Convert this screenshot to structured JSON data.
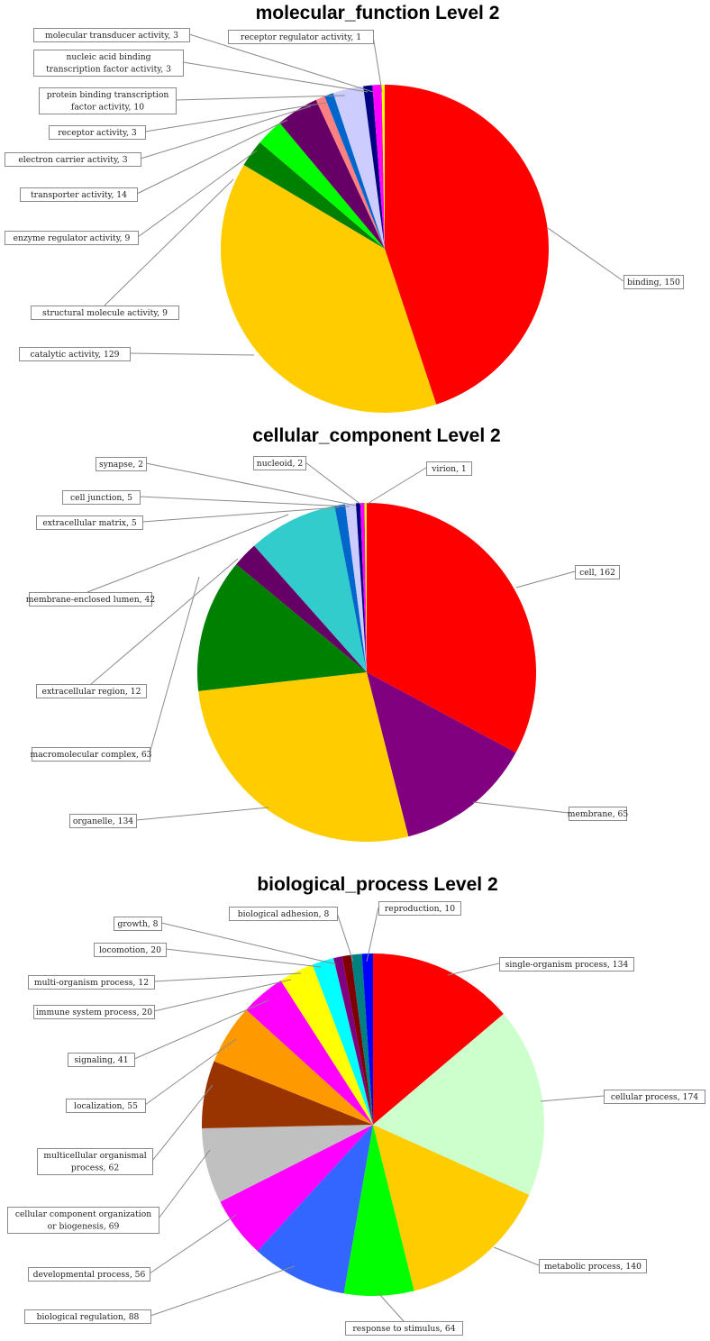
{
  "chart_data": [
    {
      "type": "pie",
      "title": "molecular_function Level 2",
      "start_angle": "12 o'clock",
      "direction": "clockwise",
      "slices": [
        {
          "label": "binding",
          "value": 150,
          "color": "#FF0000",
          "label_text": "binding, 150"
        },
        {
          "label": "catalytic activity",
          "value": 129,
          "color": "#FFCC00",
          "label_text": "catalytic activity, 129"
        },
        {
          "label": "structural molecule activity",
          "value": 9,
          "color": "#008000",
          "label_text": "structural molecule activity, 9"
        },
        {
          "label": "enzyme regulator activity",
          "value": 9,
          "color": "#00FF00",
          "label_text": "enzyme regulator activity, 9"
        },
        {
          "label": "transporter activity",
          "value": 14,
          "color": "#660066",
          "label_text": "transporter activity, 14"
        },
        {
          "label": "electron carrier activity",
          "value": 3,
          "color": "#FF8080",
          "label_text": "electron carrier activity, 3"
        },
        {
          "label": "receptor activity",
          "value": 3,
          "color": "#0066CC",
          "label_text": "receptor activity, 3"
        },
        {
          "label": "protein binding transcription factor activity",
          "value": 10,
          "color": "#CCCCFF",
          "label_text": [
            "protein binding transcription",
            "factor activity, 10"
          ]
        },
        {
          "label": "nucleic acid binding transcription factor activity",
          "value": 3,
          "color": "#000080",
          "label_text": [
            "nucleic acid binding",
            "transcription factor activity, 3"
          ]
        },
        {
          "label": "molecular transducer activity",
          "value": 3,
          "color": "#FF00FF",
          "label_text": "molecular transducer activity, 3"
        },
        {
          "label": "receptor regulator activity",
          "value": 1,
          "color": "#FFFF00",
          "label_text": "receptor regulator activity, 1"
        }
      ]
    },
    {
      "type": "pie",
      "title": "cellular_component Level 2",
      "start_angle": "12 o'clock",
      "direction": "clockwise",
      "slices": [
        {
          "label": "cell",
          "value": 162,
          "color": "#FF0000",
          "label_text": "cell, 162"
        },
        {
          "label": "membrane",
          "value": 65,
          "color": "#800080",
          "label_text": "membrane, 65"
        },
        {
          "label": "organelle",
          "value": 134,
          "color": "#FFCC00",
          "label_text": "organelle, 134"
        },
        {
          "label": "macromolecular complex",
          "value": 63,
          "color": "#008000",
          "label_text": "macromolecular complex, 63"
        },
        {
          "label": "extracellular region",
          "value": 12,
          "color": "#660066",
          "label_text": "extracellular region, 12"
        },
        {
          "label": "membrane-enclosed lumen",
          "value": 42,
          "color": "#33CCCC",
          "label_text": "membrane-enclosed lumen, 42"
        },
        {
          "label": "extracellular matrix",
          "value": 5,
          "color": "#0066CC",
          "label_text": "extracellular matrix, 5"
        },
        {
          "label": "cell junction",
          "value": 5,
          "color": "#CCCCFF",
          "label_text": "cell junction, 5"
        },
        {
          "label": "synapse",
          "value": 2,
          "color": "#000080",
          "label_text": "synapse, 2"
        },
        {
          "label": "nucleoid",
          "value": 2,
          "color": "#FF00FF",
          "label_text": "nucleoid, 2"
        },
        {
          "label": "virion",
          "value": 1,
          "color": "#FFFF00",
          "label_text": "virion, 1"
        }
      ]
    },
    {
      "type": "pie",
      "title": "biological_process Level 2",
      "start_angle": "12 o'clock",
      "direction": "clockwise",
      "slices": [
        {
          "label": "single-organism process",
          "value": 134,
          "color": "#FF0000",
          "label_text": "single-organism process, 134"
        },
        {
          "label": "cellular process",
          "value": 174,
          "color": "#CCFFCC",
          "label_text": "cellular process, 174"
        },
        {
          "label": "metabolic process",
          "value": 140,
          "color": "#FFCC00",
          "label_text": "metabolic process, 140"
        },
        {
          "label": "response to stimulus",
          "value": 64,
          "color": "#00FF00",
          "label_text": "response to stimulus, 64"
        },
        {
          "label": "biological regulation",
          "value": 88,
          "color": "#3366FF",
          "label_text": "biological regulation, 88"
        },
        {
          "label": "developmental process",
          "value": 56,
          "color": "#FF00FF",
          "label_text": "developmental process, 56"
        },
        {
          "label": "cellular component organization or biogenesis",
          "value": 69,
          "color": "#C0C0C0",
          "label_text": [
            "cellular component organization",
            "or biogenesis, 69"
          ]
        },
        {
          "label": "multicellular organismal process",
          "value": 62,
          "color": "#993300",
          "label_text": [
            "multicellular organismal",
            "process, 62"
          ]
        },
        {
          "label": "localization",
          "value": 55,
          "color": "#FF9900",
          "label_text": "localization, 55"
        },
        {
          "label": "signaling",
          "value": 41,
          "color": "#FF00FF",
          "label_text": "signaling, 41"
        },
        {
          "label": "immune system process",
          "value": 20,
          "color": "#FFFF00",
          "label_text": "immune system process, 20"
        },
        {
          "label": "multi-organism process",
          "value": 12,
          "color": "#FFFF00",
          "label_text": "multi-organism process, 12"
        },
        {
          "label": "locomotion",
          "value": 20,
          "color": "#00FFFF",
          "label_text": "locomotion, 20"
        },
        {
          "label": "growth",
          "value": 8,
          "color": "#800080",
          "label_text": "growth, 8"
        },
        {
          "label": "biological adhesion",
          "value": 8,
          "color": "#800000",
          "label_text": "biological adhesion, 8"
        },
        {
          "label": "reproduction",
          "value": 10,
          "color": "#008080",
          "label_text": "reproduction, 10"
        },
        {
          "label": "",
          "value": 10,
          "color": "#0000FF",
          "label_text": ""
        }
      ]
    }
  ]
}
